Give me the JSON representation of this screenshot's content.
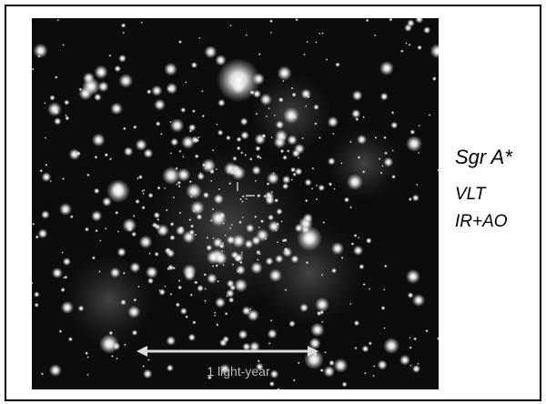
{
  "image": {
    "scale_label": "1 light-year"
  },
  "labels": {
    "target": "Sgr A*",
    "telescope": "VLT",
    "method": "IR+AO"
  }
}
